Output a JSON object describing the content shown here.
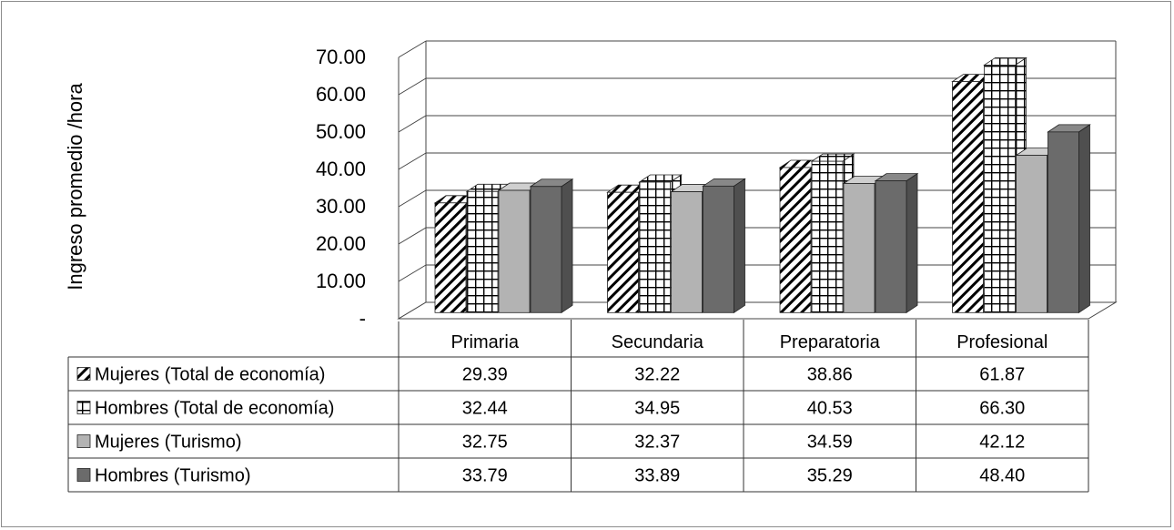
{
  "chart_data": {
    "type": "bar",
    "ylabel": "Ingreso promedio /hora",
    "xlabel": "",
    "title": "",
    "ylim": [
      0,
      70
    ],
    "yticks": [
      0,
      10,
      20,
      30,
      40,
      50,
      60,
      70
    ],
    "ytick_labels": [
      "-",
      "10.00",
      "20.00",
      "30.00",
      "40.00",
      "50.00",
      "60.00",
      "70.00"
    ],
    "categories": [
      "Primaria",
      "Secundaria",
      "Preparatoria",
      "Profesional"
    ],
    "series": [
      {
        "name": "Mujeres (Total de economía)",
        "values": [
          29.39,
          32.22,
          38.86,
          61.87
        ],
        "labels": [
          "29.39",
          "32.22",
          "38.86",
          "61.87"
        ],
        "pattern": "diagonal"
      },
      {
        "name": "Hombres (Total de economía)",
        "values": [
          32.44,
          34.95,
          40.53,
          66.3
        ],
        "labels": [
          "32.44",
          "34.95",
          "40.53",
          "66.30"
        ],
        "pattern": "grid"
      },
      {
        "name": "Mujeres (Turismo)",
        "values": [
          32.75,
          32.37,
          34.59,
          42.12
        ],
        "labels": [
          "32.75",
          "32.37",
          "34.59",
          "42.12"
        ],
        "pattern": "light"
      },
      {
        "name": "Hombres (Turismo)",
        "values": [
          33.79,
          33.89,
          35.29,
          48.4
        ],
        "labels": [
          "33.79",
          "33.89",
          "35.29",
          "48.40"
        ],
        "pattern": "dark"
      }
    ],
    "grid": true,
    "legend": "data-table"
  },
  "colors": {
    "light_gray": "#b3b3b3",
    "dark_gray": "#6b6b6b",
    "gridline": "#444444"
  }
}
